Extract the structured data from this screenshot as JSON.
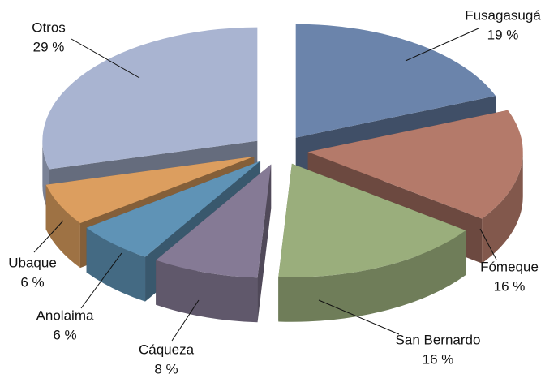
{
  "chart_data": {
    "type": "pie",
    "categories": [
      "Fusagasugá",
      "Fómeque",
      "San Bernardo",
      "Cáqueza",
      "Anolaima",
      "Ubaque",
      "Otros"
    ],
    "values": [
      19,
      16,
      16,
      8,
      6,
      6,
      29
    ],
    "value_labels": [
      "19 %",
      "16 %",
      "16 %",
      "8 %",
      "6 %",
      "6 %",
      "29 %"
    ],
    "colors": [
      "#6b84ab",
      "#b47a6a",
      "#9aae7c",
      "#857a95",
      "#5f93b6",
      "#dc9e5f",
      "#a9b4d1"
    ]
  }
}
